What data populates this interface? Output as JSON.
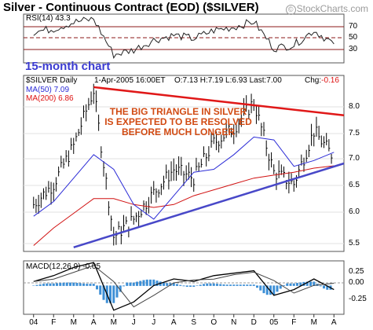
{
  "header": {
    "title": "Silver - Continuous Contract (EOD) ($SILVER)",
    "brand": "StockCharts.com",
    "brand_mark": "©"
  },
  "rsi_panel": {
    "label": "RSI(14)",
    "value": "43.3",
    "ticks": [
      "70",
      "50",
      "30"
    ]
  },
  "price_panel": {
    "symbol_label": "$SILVER Daily",
    "date": "1-Apr-2005 16:00ET",
    "ohlc_text": "O:7.13 H:7.19 L:6.93 Last:7.00",
    "change_label": "Chg:",
    "change_value": "-0.16",
    "ma50_label": "MA(50)",
    "ma50_value": "7.09",
    "ma200_label": "MA(200)",
    "ma200_value": "6.86",
    "period_note": "15-month chart",
    "annotation_lines": [
      "THE BIG TRIANGLE IN SILVER",
      "IS EXPECTED TO BE RESOLVED",
      "BEFORE MUCH LONGER"
    ],
    "y_ticks": [
      "8.0",
      "7.5",
      "7.0",
      "6.5",
      "6.0",
      "5.5"
    ]
  },
  "macd_panel": {
    "label": "MACD(12,26,9)",
    "value": "-0.05",
    "ticks": [
      "0.25",
      "0.00",
      "-0.25"
    ]
  },
  "x_axis": {
    "labels": [
      "04",
      "F",
      "M",
      "A",
      "M",
      "J",
      "J",
      "A",
      "S",
      "O",
      "N",
      "D",
      "05",
      "F",
      "M",
      "A"
    ]
  },
  "colors": {
    "background": "#ffffff",
    "price_bars": "#000000",
    "ma50": "#2b2bd6",
    "ma200": "#d11111",
    "upper_trendline": "#e01818",
    "lower_trendline": "#4848c8",
    "macd_histogram": "#3d8fd6",
    "rsi_bands": "#8b1a1a",
    "annotation": "#d14a12"
  },
  "chart_data": {
    "type": "line",
    "title": "Silver - Continuous Contract (EOD) ($SILVER)",
    "x": [
      "04",
      "F",
      "M",
      "A",
      "M",
      "J",
      "J",
      "A",
      "S",
      "O",
      "N",
      "D",
      "05",
      "F",
      "M",
      "A"
    ],
    "series": [
      {
        "name": "$SILVER Daily",
        "values": [
          6.2,
          6.55,
          7.2,
          8.15,
          5.65,
          5.95,
          6.4,
          6.8,
          6.65,
          7.25,
          7.5,
          7.95,
          6.75,
          6.55,
          7.45,
          7.0
        ]
      },
      {
        "name": "MA(50)",
        "values": [
          6.0,
          6.25,
          6.65,
          7.05,
          6.8,
          6.2,
          5.95,
          6.35,
          6.75,
          6.8,
          7.05,
          7.35,
          7.3,
          6.85,
          6.95,
          7.09
        ]
      },
      {
        "name": "MA(200)",
        "values": [
          5.5,
          5.8,
          6.05,
          6.3,
          6.3,
          6.2,
          6.15,
          6.2,
          6.35,
          6.45,
          6.55,
          6.65,
          6.7,
          6.75,
          6.82,
          6.86
        ]
      },
      {
        "name": "RSI(14)",
        "values": [
          58,
          62,
          70,
          74,
          30,
          36,
          48,
          54,
          50,
          60,
          64,
          71,
          38,
          42,
          60,
          43.3
        ]
      },
      {
        "name": "MACD(12,26,9)",
        "values": [
          0.05,
          0.12,
          0.22,
          0.28,
          -0.3,
          -0.2,
          0.0,
          0.08,
          0.05,
          0.12,
          0.15,
          0.18,
          -0.12,
          -0.05,
          0.08,
          -0.05
        ]
      }
    ],
    "trendlines": [
      {
        "from": {
          "x": "A",
          "y": 8.2
        },
        "to": {
          "x": "A",
          "y": 7.72
        }
      },
      {
        "from": {
          "x": "M",
          "y": 5.47
        },
        "to": {
          "x": "A",
          "y": 6.9
        }
      }
    ],
    "ylim": [
      5.4,
      8.4
    ],
    "rsi_ylim": [
      20,
      80
    ],
    "macd_ylim": [
      -0.35,
      0.3
    ]
  }
}
